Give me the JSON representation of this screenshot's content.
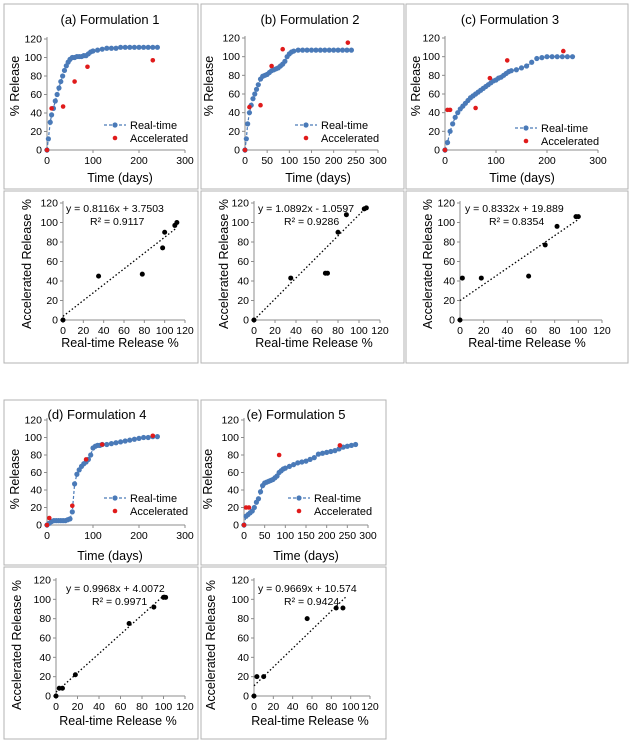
{
  "chart_data": [
    {
      "id": "p1a",
      "type": "scatter-line",
      "title": "(a) Formulation 1",
      "xlabel": "Time (days)",
      "ylabel": "% Release",
      "xlim": [
        0,
        300
      ],
      "ylim": [
        0,
        120
      ],
      "xticks": [
        0,
        100,
        200,
        300
      ],
      "yticks": [
        0,
        20,
        40,
        60,
        80,
        100,
        120
      ],
      "legend": [
        "Real-time",
        "Accelerated"
      ],
      "series": [
        {
          "name": "Real-time",
          "style": "line-marker",
          "x": [
            0,
            3,
            7,
            10,
            14,
            18,
            22,
            26,
            30,
            34,
            38,
            42,
            46,
            50,
            55,
            60,
            65,
            70,
            75,
            80,
            85,
            90,
            95,
            100,
            110,
            120,
            130,
            140,
            150,
            160,
            170,
            180,
            190,
            200,
            210,
            220,
            230,
            240
          ],
          "y": [
            0,
            12,
            30,
            38,
            45,
            53,
            60,
            67,
            74,
            80,
            86,
            91,
            95,
            98,
            100,
            100,
            101,
            101,
            101,
            102,
            102,
            104,
            106,
            107,
            108,
            109,
            110,
            110,
            110,
            111,
            111,
            111,
            111,
            111,
            111,
            111,
            111,
            111
          ]
        },
        {
          "name": "Accelerated",
          "style": "marker",
          "x": [
            0,
            10,
            35,
            60,
            88,
            230
          ],
          "y": [
            0,
            45,
            47,
            74,
            90,
            97
          ]
        }
      ]
    },
    {
      "id": "p1b",
      "type": "scatter-line",
      "title": "(b) Formulation 2",
      "xlabel": "Time (days)",
      "ylabel": "% Release",
      "xlim": [
        0,
        300
      ],
      "ylim": [
        0,
        120
      ],
      "xticks": [
        0,
        50,
        100,
        150,
        200,
        250,
        300
      ],
      "yticks": [
        0,
        20,
        40,
        60,
        80,
        100,
        120
      ],
      "legend": [
        "Real-time",
        "Accelerated"
      ],
      "series": [
        {
          "name": "Real-time",
          "style": "line-marker",
          "x": [
            0,
            3,
            6,
            10,
            14,
            18,
            22,
            26,
            30,
            35,
            40,
            45,
            50,
            55,
            60,
            65,
            70,
            75,
            80,
            85,
            90,
            95,
            100,
            105,
            110,
            120,
            130,
            140,
            150,
            160,
            170,
            180,
            190,
            200,
            210,
            220,
            230,
            240
          ],
          "y": [
            0,
            12,
            28,
            40,
            48,
            55,
            60,
            65,
            70,
            76,
            79,
            80,
            81,
            83,
            85,
            86,
            87,
            88,
            90,
            92,
            95,
            100,
            103,
            105,
            106,
            107,
            107,
            107,
            107,
            107,
            107,
            107,
            107,
            107,
            107,
            107,
            107,
            107
          ]
        },
        {
          "name": "Accelerated",
          "style": "marker",
          "x": [
            0,
            10,
            35,
            60,
            85,
            232
          ],
          "y": [
            0,
            46,
            48,
            90,
            108,
            115
          ]
        }
      ]
    },
    {
      "id": "p1c",
      "type": "scatter-line",
      "title": "(c) Formulation 3",
      "xlabel": "Time (days)",
      "ylabel": "% Release",
      "xlim": [
        0,
        300
      ],
      "ylim": [
        0,
        120
      ],
      "xticks": [
        0,
        100,
        200,
        300
      ],
      "yticks": [
        0,
        20,
        40,
        60,
        80,
        100,
        120
      ],
      "legend": [
        "Real-time",
        "Accelerated"
      ],
      "series": [
        {
          "name": "Real-time",
          "style": "line-marker",
          "x": [
            0,
            5,
            10,
            15,
            20,
            25,
            30,
            35,
            40,
            45,
            50,
            55,
            60,
            65,
            70,
            75,
            80,
            85,
            90,
            95,
            100,
            105,
            110,
            115,
            120,
            125,
            130,
            140,
            150,
            160,
            170,
            180,
            190,
            200,
            210,
            220,
            230,
            240,
            250
          ],
          "y": [
            0,
            8,
            20,
            28,
            35,
            40,
            44,
            47,
            50,
            53,
            56,
            58,
            60,
            62,
            64,
            66,
            68,
            70,
            72,
            74,
            75,
            77,
            78,
            80,
            82,
            84,
            85,
            86,
            88,
            90,
            94,
            98,
            99,
            100,
            100,
            100,
            100,
            100,
            100
          ]
        },
        {
          "name": "Accelerated",
          "style": "marker",
          "x": [
            0,
            5,
            10,
            60,
            88,
            122,
            232
          ],
          "y": [
            0,
            43,
            43,
            45,
            77,
            96,
            106
          ]
        }
      ]
    },
    {
      "id": "p2a",
      "type": "scatter",
      "title": "",
      "xlabel": "Real-time Release %",
      "ylabel": "Accelerated Release %",
      "xlim": [
        0,
        120
      ],
      "ylim": [
        0,
        120
      ],
      "xticks": [
        0,
        20,
        40,
        60,
        80,
        100,
        120
      ],
      "yticks": [
        0,
        20,
        40,
        60,
        80,
        100,
        120
      ],
      "equation": "y = 0.8116x + 3.7503",
      "r2": "R² = 0.9117",
      "trend": {
        "slope": 0.8116,
        "intercept": 3.7503,
        "x0": 0,
        "x1": 112
      },
      "series": [
        {
          "name": "Points",
          "style": "marker-black",
          "x": [
            0,
            35,
            78,
            98,
            100,
            110,
            112
          ],
          "y": [
            0,
            45,
            47,
            74,
            90,
            97,
            100
          ]
        }
      ]
    },
    {
      "id": "p2b",
      "type": "scatter",
      "title": "",
      "xlabel": "Real-time Release %",
      "ylabel": "Accelerated Release %",
      "xlim": [
        0,
        120
      ],
      "ylim": [
        0,
        120
      ],
      "xticks": [
        0,
        20,
        40,
        60,
        80,
        100,
        120
      ],
      "yticks": [
        0,
        20,
        40,
        60,
        80,
        100,
        120
      ],
      "equation": "y = 1.0892x - 1.0597",
      "r2": "R² = 0.9286",
      "trend": {
        "slope": 1.0892,
        "intercept": -1.0597,
        "x0": 0,
        "x1": 108
      },
      "series": [
        {
          "name": "Points",
          "style": "marker-black",
          "x": [
            0,
            35,
            68,
            70,
            80,
            88,
            105,
            107
          ],
          "y": [
            0,
            43,
            48,
            48,
            90,
            108,
            114,
            115
          ]
        }
      ]
    },
    {
      "id": "p2c",
      "type": "scatter",
      "title": "",
      "xlabel": "Real-time Release %",
      "ylabel": "Accelerated Release %",
      "xlim": [
        0,
        120
      ],
      "ylim": [
        0,
        120
      ],
      "xticks": [
        0,
        20,
        40,
        60,
        80,
        100,
        120
      ],
      "yticks": [
        0,
        20,
        40,
        60,
        80,
        100,
        120
      ],
      "equation": "y = 0.8332x + 19.889",
      "r2": "R² = 0.8354",
      "trend": {
        "slope": 0.8332,
        "intercept": 19.889,
        "x0": 0,
        "x1": 100
      },
      "series": [
        {
          "name": "Points",
          "style": "marker-black",
          "x": [
            0,
            2,
            18,
            58,
            72,
            82,
            98,
            100
          ],
          "y": [
            0,
            43,
            43,
            45,
            77,
            96,
            106,
            106
          ]
        }
      ]
    },
    {
      "id": "p3a",
      "type": "scatter-line",
      "title": "(d) Formulation 4",
      "xlabel": "Time (days)",
      "ylabel": "% Release",
      "xlim": [
        0,
        300
      ],
      "ylim": [
        0,
        120
      ],
      "xticks": [
        0,
        100,
        200,
        300
      ],
      "yticks": [
        0,
        20,
        40,
        60,
        80,
        100,
        120
      ],
      "legend": [
        "Real-time",
        "Accelerated"
      ],
      "series": [
        {
          "name": "Real-time",
          "style": "line-marker",
          "x": [
            0,
            5,
            10,
            15,
            20,
            25,
            30,
            35,
            40,
            45,
            50,
            55,
            60,
            65,
            70,
            75,
            80,
            85,
            90,
            95,
            100,
            105,
            110,
            115,
            120,
            130,
            140,
            150,
            160,
            170,
            180,
            190,
            200,
            210,
            220,
            230,
            240
          ],
          "y": [
            0,
            2,
            4,
            5,
            5,
            5,
            5,
            5,
            5,
            6,
            7,
            15,
            47,
            58,
            63,
            67,
            70,
            72,
            75,
            80,
            88,
            90,
            91,
            91,
            92,
            92,
            93,
            94,
            95,
            96,
            97,
            98,
            99,
            100,
            100,
            101,
            101
          ]
        },
        {
          "name": "Accelerated",
          "style": "marker",
          "x": [
            0,
            5,
            55,
            85,
            120,
            230
          ],
          "y": [
            0,
            8,
            22,
            75,
            92,
            102
          ]
        }
      ]
    },
    {
      "id": "p3b",
      "type": "scatter-line",
      "title": "(e) Formulation 5",
      "xlabel": "Time (days)",
      "ylabel": "% Release",
      "xlim": [
        0,
        300
      ],
      "ylim": [
        0,
        120
      ],
      "xticks": [
        0,
        50,
        100,
        150,
        200,
        250,
        300
      ],
      "yticks": [
        0,
        20,
        40,
        60,
        80,
        100,
        120
      ],
      "legend": [
        "Real-time",
        "Accelerated"
      ],
      "series": [
        {
          "name": "Real-time",
          "style": "line-marker",
          "x": [
            0,
            5,
            10,
            15,
            20,
            25,
            30,
            35,
            40,
            45,
            50,
            55,
            60,
            65,
            70,
            75,
            80,
            85,
            90,
            95,
            100,
            110,
            120,
            130,
            140,
            150,
            160,
            170,
            180,
            190,
            200,
            210,
            220,
            230,
            240,
            250,
            260,
            270
          ],
          "y": [
            0,
            10,
            12,
            14,
            16,
            20,
            26,
            30,
            38,
            45,
            48,
            49,
            50,
            51,
            52,
            54,
            56,
            60,
            62,
            64,
            65,
            67,
            69,
            71,
            72,
            73,
            75,
            77,
            81,
            82,
            83,
            84,
            85,
            87,
            89,
            90,
            91,
            92
          ]
        },
        {
          "name": "Accelerated",
          "style": "marker",
          "x": [
            0,
            5,
            12,
            85,
            232
          ],
          "y": [
            0,
            20,
            20,
            80,
            91
          ]
        }
      ]
    },
    {
      "id": "p4a",
      "type": "scatter",
      "title": "",
      "xlabel": "Real-time Release %",
      "ylabel": "Accelerated Release %",
      "xlim": [
        0,
        120
      ],
      "ylim": [
        0,
        120
      ],
      "xticks": [
        0,
        20,
        40,
        60,
        80,
        100,
        120
      ],
      "yticks": [
        0,
        20,
        40,
        60,
        80,
        100,
        120
      ],
      "equation": "y = 0.9968x + 4.0072",
      "r2": "R² = 0.9971",
      "trend": {
        "slope": 0.9968,
        "intercept": 4.0072,
        "x0": 0,
        "x1": 102
      },
      "series": [
        {
          "name": "Points",
          "style": "marker-black",
          "x": [
            0,
            3,
            6,
            18,
            68,
            91,
            100,
            102
          ],
          "y": [
            0,
            8,
            8,
            22,
            75,
            92,
            102,
            102
          ]
        }
      ]
    },
    {
      "id": "p4b",
      "type": "scatter",
      "title": "",
      "xlabel": "Real-time Release %",
      "ylabel": "Accelerated Release %",
      "xlim": [
        0,
        120
      ],
      "ylim": [
        0,
        120
      ],
      "xticks": [
        0,
        20,
        40,
        60,
        80,
        100,
        120
      ],
      "yticks": [
        0,
        20,
        40,
        60,
        80,
        100,
        120
      ],
      "equation": "y = 0.9669x + 10.574",
      "r2": "R² = 0.9424",
      "trend": {
        "slope": 0.9669,
        "intercept": 10.574,
        "x0": 0,
        "x1": 95
      },
      "series": [
        {
          "name": "Points",
          "style": "marker-black",
          "x": [
            0,
            3,
            10,
            55,
            85,
            92
          ],
          "y": [
            0,
            20,
            20,
            80,
            91,
            91
          ]
        }
      ]
    }
  ],
  "colors": {
    "realtime": "#4a7ab8",
    "accelerated": "#e01b1b",
    "points": "#000000",
    "trend": "#000000"
  }
}
